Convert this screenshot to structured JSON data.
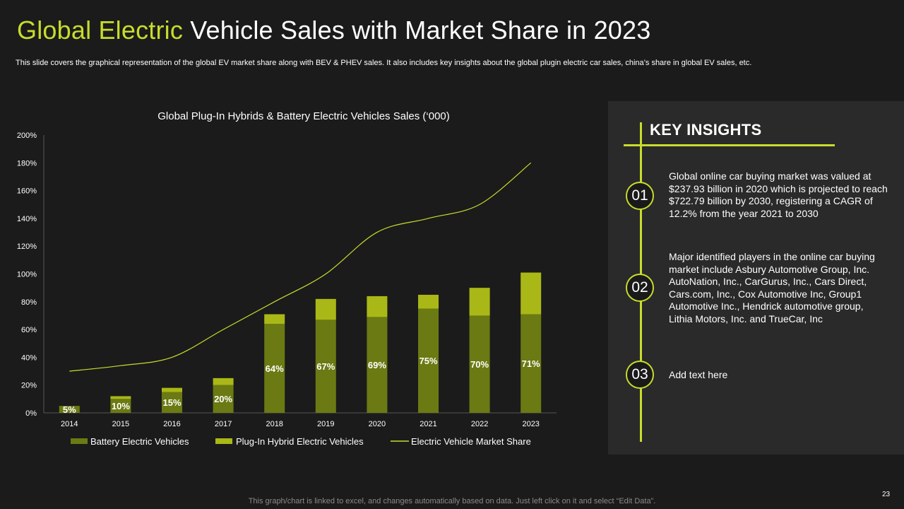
{
  "slide": {
    "title_accent": "Global Electric",
    "title_rest": " Vehicle Sales with Market Share in 2023",
    "subtitle": "This slide covers the graphical representation of the global EV market share along with BEV & PHEV sales. It also includes key insights about the global plugin electric car sales, china’s share in global EV sales, etc.",
    "footer": "This graph/chart is linked to excel,  and changes automatically based on data. Just left click on it and select “Edit Data”.",
    "page_number": "23"
  },
  "colors": {
    "accent": "#c8dc2c",
    "bev": "#6b7a12",
    "phev": "#a9b816",
    "line": "#c8dc2c"
  },
  "chart_data": {
    "type": "bar",
    "stacked": true,
    "title": "Global Plug-In Hybrids & Battery Electric Vehicles Sales (‘000)",
    "categories": [
      "2014",
      "2015",
      "2016",
      "2017",
      "2018",
      "2019",
      "2020",
      "2021",
      "2022",
      "2023"
    ],
    "ylim": [
      0,
      200
    ],
    "yticks": [
      0,
      20,
      40,
      60,
      80,
      100,
      120,
      140,
      160,
      180,
      200
    ],
    "ytick_labels": [
      "0%",
      "20%",
      "40%",
      "60%",
      "80%",
      "100%",
      "120%",
      "140%",
      "160%",
      "180%",
      "200%"
    ],
    "series": [
      {
        "name": "Battery Electric Vehicles",
        "kind": "bar",
        "values": [
          5,
          10,
          15,
          20,
          64,
          67,
          69,
          75,
          70,
          71
        ],
        "labels": [
          "5%",
          "10%",
          "15%",
          "20%",
          "64%",
          "67%",
          "69%",
          "75%",
          "70%",
          "71%"
        ]
      },
      {
        "name": "Plug-In Hybrid Electric Vehicles",
        "kind": "bar",
        "values": [
          0,
          2,
          3,
          5,
          7,
          15,
          15,
          10,
          20,
          30
        ]
      },
      {
        "name": "Electric Vehicle Market  Share",
        "kind": "line",
        "values": [
          30,
          34,
          40,
          60,
          80,
          100,
          130,
          140,
          150,
          180
        ]
      }
    ],
    "legend": [
      "Battery Electric Vehicles",
      "Plug-In Hybrid Electric Vehicles",
      "Electric Vehicle Market  Share"
    ]
  },
  "insights": {
    "heading": "KEY INSIGHTS",
    "items": [
      {
        "number": "01",
        "text": "Global online car buying market was valued at $237.93 billion in 2020 which is projected to reach $722.79 billion by 2030, registering a CAGR of 12.2% from the year 2021 to 2030"
      },
      {
        "number": "02",
        "text": "Major identified players in the online car buying market include Asbury Automotive Group, Inc. AutoNation, Inc., CarGurus, Inc., Cars Direct, Cars.com, Inc., Cox Automotive Inc, Group1 Automotive Inc., Hendrick automotive group, Lithia Motors, Inc. and TrueCar, Inc"
      },
      {
        "number": "03",
        "text": "Add text here"
      }
    ]
  }
}
